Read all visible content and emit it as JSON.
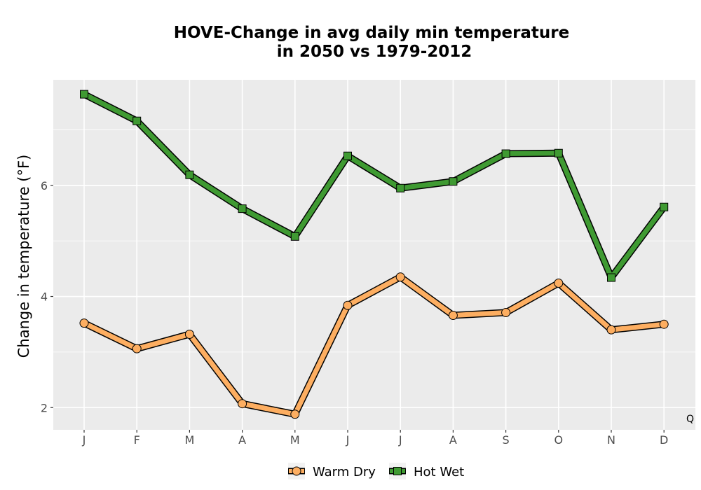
{
  "chart_data": {
    "type": "line",
    "title_lines": [
      "HOVE-Change in avg daily min temperature",
      "in 2050 vs 1979-2012"
    ],
    "xlabel": "",
    "ylabel": "Change in temperature (°F)",
    "categories": [
      "J",
      "F",
      "M",
      "A",
      "M",
      "J",
      "J",
      "A",
      "S",
      "O",
      "N",
      "D"
    ],
    "ylim": [
      1.6,
      7.9
    ],
    "yticks": [
      2,
      4,
      6
    ],
    "grid": true,
    "legend_position": "bottom",
    "annotation": "Q",
    "series": [
      {
        "name": "Warm Dry",
        "color": "#FDAE61",
        "marker": "circle",
        "values": [
          3.52,
          3.06,
          3.32,
          2.07,
          1.88,
          3.84,
          4.35,
          3.66,
          3.71,
          4.24,
          3.4,
          3.5
        ]
      },
      {
        "name": "Hot Wet",
        "color": "#3F9A32",
        "marker": "square",
        "values": [
          7.64,
          7.16,
          6.19,
          5.58,
          5.08,
          6.53,
          5.95,
          6.07,
          6.57,
          6.58,
          4.34,
          5.61
        ]
      }
    ]
  }
}
